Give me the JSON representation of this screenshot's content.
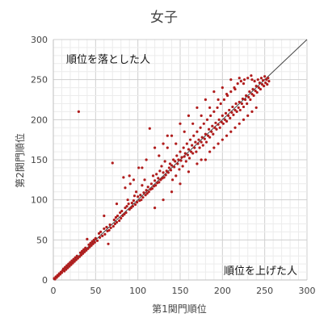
{
  "chart_data": {
    "type": "scatter",
    "title": "女子",
    "xlabel": "第1関門順位",
    "ylabel": "第2関門順位",
    "xlim": [
      0,
      300
    ],
    "ylim": [
      0,
      300
    ],
    "xticks": [
      0,
      50,
      100,
      150,
      200,
      250,
      300
    ],
    "yticks": [
      0,
      50,
      100,
      150,
      200,
      250,
      300
    ],
    "grid": true,
    "annotations": {
      "upper_left": "順位を落とした人",
      "lower_right": "順位を上げた人"
    },
    "reference_line": {
      "from": [
        0,
        0
      ],
      "to": [
        300,
        300
      ]
    },
    "marker_color": "#b01c1c",
    "line_color": "#444444",
    "series": [
      {
        "points": [
          [
            1,
            2
          ],
          [
            2,
            1
          ],
          [
            3,
            4
          ],
          [
            4,
            3
          ],
          [
            5,
            6
          ],
          [
            6,
            5
          ],
          [
            7,
            8
          ],
          [
            8,
            7
          ],
          [
            9,
            10
          ],
          [
            10,
            9
          ],
          [
            11,
            12
          ],
          [
            12,
            14
          ],
          [
            13,
            11
          ],
          [
            14,
            16
          ],
          [
            15,
            13
          ],
          [
            16,
            18
          ],
          [
            17,
            15
          ],
          [
            18,
            20
          ],
          [
            19,
            17
          ],
          [
            20,
            22
          ],
          [
            21,
            19
          ],
          [
            22,
            24
          ],
          [
            23,
            21
          ],
          [
            24,
            26
          ],
          [
            25,
            23
          ],
          [
            26,
            28
          ],
          [
            27,
            25
          ],
          [
            28,
            30
          ],
          [
            29,
            27
          ],
          [
            30,
            210
          ],
          [
            31,
            29
          ],
          [
            32,
            34
          ],
          [
            33,
            31
          ],
          [
            34,
            36
          ],
          [
            35,
            33
          ],
          [
            36,
            38
          ],
          [
            37,
            35
          ],
          [
            38,
            40
          ],
          [
            39,
            37
          ],
          [
            40,
            51
          ],
          [
            41,
            39
          ],
          [
            42,
            44
          ],
          [
            43,
            41
          ],
          [
            44,
            46
          ],
          [
            45,
            43
          ],
          [
            46,
            48
          ],
          [
            47,
            45
          ],
          [
            48,
            50
          ],
          [
            49,
            47
          ],
          [
            50,
            52
          ],
          [
            52,
            49
          ],
          [
            54,
            58
          ],
          [
            55,
            53
          ],
          [
            56,
            60
          ],
          [
            58,
            55
          ],
          [
            60,
            64
          ],
          [
            61,
            57
          ],
          [
            63,
            66
          ],
          [
            64,
            61
          ],
          [
            65,
            45
          ],
          [
            66,
            62
          ],
          [
            67,
            69
          ],
          [
            68,
            65
          ],
          [
            70,
            146
          ],
          [
            71,
            67
          ],
          [
            72,
            75
          ],
          [
            73,
            70
          ],
          [
            74,
            78
          ],
          [
            75,
            72
          ],
          [
            76,
            80
          ],
          [
            78,
            74
          ],
          [
            79,
            84
          ],
          [
            80,
            77
          ],
          [
            81,
            86
          ],
          [
            82,
            80
          ],
          [
            83,
            128
          ],
          [
            84,
            82
          ],
          [
            85,
            90
          ],
          [
            86,
            84
          ],
          [
            87,
            92
          ],
          [
            88,
            100
          ],
          [
            89,
            95
          ],
          [
            90,
            88
          ],
          [
            91,
            120
          ],
          [
            92,
            90
          ],
          [
            93,
            96
          ],
          [
            94,
            92
          ],
          [
            95,
            99
          ],
          [
            96,
            105
          ],
          [
            97,
            94
          ],
          [
            98,
            110
          ],
          [
            99,
            97
          ],
          [
            100,
            104
          ],
          [
            101,
            140
          ],
          [
            102,
            99
          ],
          [
            103,
            106
          ],
          [
            104,
            100
          ],
          [
            105,
            118
          ],
          [
            106,
            103
          ],
          [
            107,
            109
          ],
          [
            108,
            125
          ],
          [
            109,
            106
          ],
          [
            110,
            112
          ],
          [
            111,
            108
          ],
          [
            112,
            116
          ],
          [
            113,
            110
          ],
          [
            114,
            189
          ],
          [
            115,
            113
          ],
          [
            116,
            120
          ],
          [
            117,
            114
          ],
          [
            118,
            130
          ],
          [
            119,
            117
          ],
          [
            120,
            124
          ],
          [
            121,
            118
          ],
          [
            122,
            132
          ],
          [
            123,
            121
          ],
          [
            124,
            127
          ],
          [
            125,
            122
          ],
          [
            126,
            136
          ],
          [
            127,
            125
          ],
          [
            128,
            142
          ],
          [
            129,
            127
          ],
          [
            130,
            134
          ],
          [
            131,
            128
          ],
          [
            132,
            148
          ],
          [
            133,
            131
          ],
          [
            134,
            136
          ],
          [
            135,
            180
          ],
          [
            136,
            134
          ],
          [
            137,
            140
          ],
          [
            138,
            145
          ],
          [
            139,
            137
          ],
          [
            140,
            143
          ],
          [
            141,
            125
          ],
          [
            142,
            150
          ],
          [
            143,
            141
          ],
          [
            144,
            148
          ],
          [
            145,
            130
          ],
          [
            146,
            155
          ],
          [
            147,
            145
          ],
          [
            148,
            150
          ],
          [
            149,
            138
          ],
          [
            150,
            160
          ],
          [
            151,
            149
          ],
          [
            152,
            153
          ],
          [
            153,
            142
          ],
          [
            154,
            165
          ],
          [
            155,
            154
          ],
          [
            156,
            158
          ],
          [
            157,
            148
          ],
          [
            158,
            170
          ],
          [
            159,
            156
          ],
          [
            160,
            163
          ],
          [
            161,
            152
          ],
          [
            162,
            175
          ],
          [
            163,
            160
          ],
          [
            164,
            168
          ],
          [
            165,
            158
          ],
          [
            166,
            180
          ],
          [
            167,
            165
          ],
          [
            168,
            172
          ],
          [
            169,
            160
          ],
          [
            170,
            185
          ],
          [
            171,
            170
          ],
          [
            172,
            175
          ],
          [
            173,
            165
          ],
          [
            174,
            190
          ],
          [
            175,
            172
          ],
          [
            176,
            178
          ],
          [
            177,
            168
          ],
          [
            178,
            195
          ],
          [
            179,
            176
          ],
          [
            180,
            182
          ],
          [
            181,
            172
          ],
          [
            182,
            200
          ],
          [
            183,
            180
          ],
          [
            184,
            188
          ],
          [
            185,
            178
          ],
          [
            186,
            205
          ],
          [
            187,
            185
          ],
          [
            188,
            192
          ],
          [
            189,
            182
          ],
          [
            190,
            210
          ],
          [
            191,
            190
          ],
          [
            192,
            196
          ],
          [
            193,
            188
          ],
          [
            194,
            215
          ],
          [
            195,
            194
          ],
          [
            196,
            200
          ],
          [
            197,
            190
          ],
          [
            198,
            220
          ],
          [
            199,
            197
          ],
          [
            200,
            205
          ],
          [
            201,
            195
          ],
          [
            202,
            225
          ],
          [
            203,
            200
          ],
          [
            204,
            208
          ],
          [
            205,
            198
          ],
          [
            206,
            230
          ],
          [
            207,
            205
          ],
          [
            208,
            212
          ],
          [
            209,
            202
          ],
          [
            210,
            235
          ],
          [
            211,
            209
          ],
          [
            212,
            216
          ],
          [
            213,
            206
          ],
          [
            214,
            240
          ],
          [
            215,
            212
          ],
          [
            216,
            220
          ],
          [
            217,
            210
          ],
          [
            218,
            245
          ],
          [
            219,
            215
          ],
          [
            220,
            222
          ],
          [
            221,
            212
          ],
          [
            222,
            248
          ],
          [
            223,
            220
          ],
          [
            224,
            226
          ],
          [
            225,
            216
          ],
          [
            226,
            250
          ],
          [
            227,
            225
          ],
          [
            228,
            230
          ],
          [
            229,
            220
          ],
          [
            230,
            252
          ],
          [
            231,
            228
          ],
          [
            232,
            235
          ],
          [
            233,
            225
          ],
          [
            234,
            255
          ],
          [
            235,
            232
          ],
          [
            236,
            238
          ],
          [
            237,
            230
          ],
          [
            238,
            248
          ],
          [
            239,
            236
          ],
          [
            240,
            242
          ],
          [
            241,
            234
          ],
          [
            242,
            250
          ],
          [
            243,
            240
          ],
          [
            244,
            246
          ],
          [
            245,
            238
          ],
          [
            246,
            252
          ],
          [
            247,
            244
          ],
          [
            248,
            249
          ],
          [
            249,
            242
          ],
          [
            250,
            254
          ],
          [
            251,
            246
          ],
          [
            252,
            250
          ],
          [
            253,
            244
          ],
          [
            254,
            252
          ],
          [
            255,
            248
          ],
          [
            60,
            80
          ],
          [
            75,
            95
          ],
          [
            90,
            130
          ],
          [
            105,
            140
          ],
          [
            120,
            165
          ],
          [
            130,
            170
          ],
          [
            140,
            180
          ],
          [
            150,
            195
          ],
          [
            160,
            205
          ],
          [
            170,
            215
          ],
          [
            180,
            225
          ],
          [
            190,
            235
          ],
          [
            200,
            240
          ],
          [
            210,
            250
          ],
          [
            220,
            252
          ],
          [
            85,
            115
          ],
          [
            95,
            125
          ],
          [
            110,
            150
          ],
          [
            125,
            155
          ],
          [
            135,
            165
          ],
          [
            145,
            170
          ],
          [
            155,
            185
          ],
          [
            165,
            195
          ],
          [
            175,
            205
          ],
          [
            185,
            215
          ],
          [
            195,
            225
          ],
          [
            205,
            232
          ],
          [
            215,
            238
          ],
          [
            225,
            245
          ],
          [
            235,
            250
          ],
          [
            120,
            90
          ],
          [
            130,
            100
          ],
          [
            140,
            110
          ],
          [
            150,
            120
          ],
          [
            160,
            135
          ],
          [
            170,
            145
          ],
          [
            180,
            150
          ],
          [
            190,
            165
          ],
          [
            200,
            175
          ],
          [
            210,
            185
          ],
          [
            220,
            195
          ],
          [
            230,
            205
          ],
          [
            240,
            215
          ],
          [
            175,
            150
          ],
          [
            185,
            160
          ],
          [
            195,
            170
          ],
          [
            205,
            180
          ],
          [
            215,
            190
          ],
          [
            225,
            200
          ],
          [
            235,
            210
          ]
        ]
      }
    ]
  }
}
